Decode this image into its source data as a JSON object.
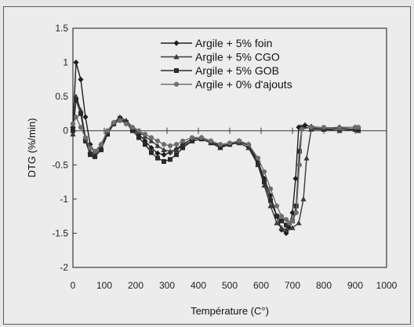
{
  "chart_data": {
    "type": "line",
    "xlabel": "Température (C°)",
    "ylabel": "DTG (%/min)",
    "xlim": [
      0,
      1000
    ],
    "ylim": [
      -2,
      1.5
    ],
    "xticks": [
      0,
      100,
      200,
      300,
      400,
      500,
      600,
      700,
      800,
      900,
      1000
    ],
    "yticks": [
      -2,
      -1.5,
      -1,
      -0.5,
      0,
      0.5,
      1,
      1.5
    ],
    "grid": false,
    "legend_position": "top-right",
    "series": [
      {
        "name": "Argile + 5% foin",
        "marker": "diamond",
        "x": [
          0,
          10,
          25,
          40,
          55,
          70,
          90,
          110,
          130,
          150,
          170,
          190,
          210,
          230,
          250,
          270,
          290,
          310,
          330,
          350,
          380,
          410,
          440,
          470,
          500,
          530,
          560,
          590,
          610,
          630,
          650,
          665,
          680,
          690,
          700,
          710,
          720,
          740,
          760,
          800,
          850,
          900,
          910
        ],
        "values": [
          0.05,
          1.0,
          0.75,
          0.2,
          -0.2,
          -0.32,
          -0.2,
          -0.05,
          0.1,
          0.15,
          0.12,
          0.03,
          -0.05,
          -0.15,
          -0.25,
          -0.33,
          -0.35,
          -0.32,
          -0.27,
          -0.2,
          -0.12,
          -0.1,
          -0.15,
          -0.22,
          -0.2,
          -0.15,
          -0.2,
          -0.45,
          -0.7,
          -0.95,
          -1.25,
          -1.45,
          -1.5,
          -1.42,
          -1.2,
          -0.7,
          0.05,
          0.08,
          0.06,
          0.04,
          0.05,
          0.05,
          0.05
        ]
      },
      {
        "name": "Argile + 5% CGO",
        "marker": "triangle",
        "x": [
          0,
          10,
          25,
          40,
          55,
          70,
          90,
          110,
          130,
          150,
          170,
          190,
          210,
          230,
          250,
          270,
          290,
          310,
          330,
          350,
          380,
          410,
          440,
          470,
          500,
          530,
          560,
          590,
          610,
          630,
          650,
          665,
          680,
          700,
          720,
          735,
          745,
          760,
          800,
          850,
          900,
          910
        ],
        "values": [
          -0.05,
          0.5,
          0.3,
          -0.1,
          -0.3,
          -0.35,
          -0.25,
          -0.05,
          0.12,
          0.2,
          0.15,
          0.05,
          -0.02,
          -0.08,
          -0.15,
          -0.22,
          -0.28,
          -0.3,
          -0.28,
          -0.22,
          -0.15,
          -0.12,
          -0.18,
          -0.25,
          -0.2,
          -0.18,
          -0.25,
          -0.5,
          -0.8,
          -1.1,
          -1.35,
          -1.42,
          -1.45,
          -1.42,
          -1.35,
          -1.0,
          -0.4,
          0.02,
          0.02,
          0.0,
          0.02,
          0.0
        ]
      },
      {
        "name": "Argile + 5% GOB",
        "marker": "square",
        "x": [
          0,
          10,
          25,
          40,
          55,
          70,
          90,
          110,
          130,
          150,
          170,
          190,
          210,
          230,
          250,
          270,
          290,
          310,
          330,
          350,
          380,
          410,
          440,
          470,
          500,
          530,
          560,
          590,
          610,
          630,
          650,
          665,
          680,
          690,
          700,
          712,
          722,
          730,
          760,
          800,
          850,
          900,
          910
        ],
        "values": [
          0.0,
          0.45,
          0.25,
          -0.15,
          -0.35,
          -0.38,
          -0.28,
          -0.05,
          0.1,
          0.18,
          0.12,
          0.0,
          -0.1,
          -0.2,
          -0.32,
          -0.4,
          -0.45,
          -0.42,
          -0.35,
          -0.25,
          -0.15,
          -0.12,
          -0.17,
          -0.24,
          -0.2,
          -0.16,
          -0.22,
          -0.48,
          -0.75,
          -1.02,
          -1.25,
          -1.32,
          -1.38,
          -1.35,
          -1.32,
          -1.1,
          -0.3,
          0.05,
          0.04,
          0.02,
          0.03,
          0.02,
          0.02
        ]
      },
      {
        "name": "Argile + 0% d'ajouts",
        "marker": "circle",
        "x": [
          0,
          10,
          25,
          40,
          55,
          70,
          90,
          110,
          130,
          150,
          170,
          190,
          210,
          230,
          250,
          270,
          290,
          310,
          330,
          350,
          380,
          410,
          440,
          470,
          500,
          530,
          560,
          590,
          610,
          630,
          650,
          665,
          680,
          690,
          700,
          712,
          722,
          730,
          760,
          800,
          850,
          900,
          910
        ],
        "values": [
          0.1,
          0.2,
          0.05,
          -0.1,
          -0.25,
          -0.3,
          -0.2,
          0.0,
          0.12,
          0.15,
          0.1,
          0.05,
          0.0,
          -0.05,
          -0.1,
          -0.15,
          -0.2,
          -0.22,
          -0.2,
          -0.15,
          -0.1,
          -0.1,
          -0.15,
          -0.2,
          -0.18,
          -0.15,
          -0.2,
          -0.4,
          -0.6,
          -0.85,
          -1.1,
          -1.25,
          -1.3,
          -1.35,
          -1.32,
          -1.2,
          -0.5,
          0.02,
          0.05,
          0.05,
          0.04,
          0.05,
          0.05
        ]
      }
    ]
  }
}
